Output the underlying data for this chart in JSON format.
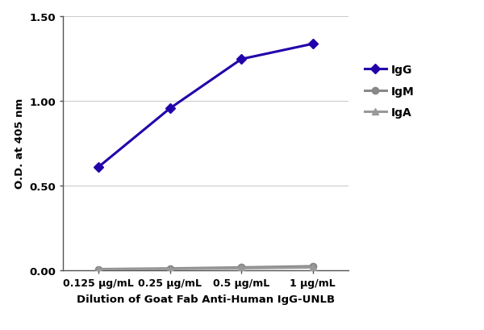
{
  "x_positions": [
    1,
    2,
    3,
    4
  ],
  "x_labels": [
    "0.125 μg/mL",
    "0.25 μg/mL",
    "0.5 μg/mL",
    "1 μg/mL"
  ],
  "IgG": [
    0.61,
    0.955,
    1.245,
    1.335
  ],
  "IgM": [
    0.008,
    0.012,
    0.018,
    0.025
  ],
  "IgA": [
    0.005,
    0.008,
    0.013,
    0.018
  ],
  "IgG_color": "#2200aa",
  "IgM_color": "#888888",
  "IgA_color": "#999999",
  "ylabel": "O.D. at 405 nm",
  "xlabel": "Dilution of Goat Fab Anti-Human IgG-UNLB",
  "ylim": [
    0.0,
    1.5
  ],
  "yticks": [
    0.0,
    0.5,
    1.0,
    1.5
  ],
  "legend_labels": [
    "IgG",
    "IgM",
    "IgA"
  ],
  "linewidth": 2.2,
  "markersize": 6,
  "grid_color": "#cccccc",
  "spine_color": "#555555"
}
